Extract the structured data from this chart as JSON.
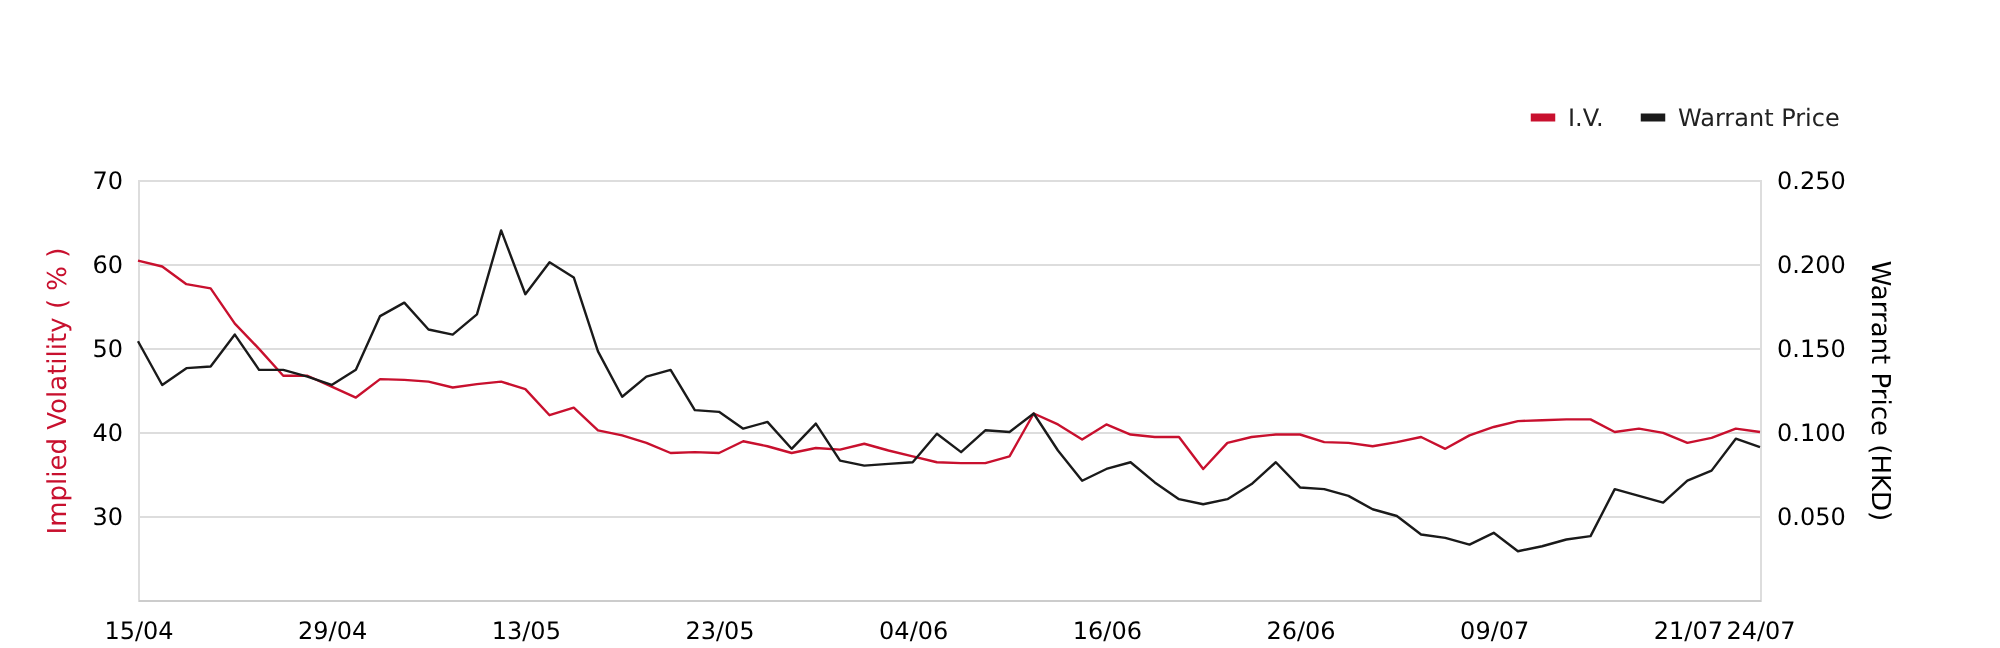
{
  "chart_data": {
    "type": "line",
    "categories": [
      "15/04",
      null,
      null,
      null,
      null,
      null,
      null,
      null,
      "29/04",
      null,
      null,
      null,
      null,
      null,
      null,
      null,
      "13/05",
      null,
      null,
      null,
      null,
      null,
      null,
      null,
      "23/05",
      null,
      null,
      null,
      null,
      null,
      null,
      null,
      "04/06",
      null,
      null,
      null,
      null,
      null,
      null,
      null,
      "16/06",
      null,
      null,
      null,
      null,
      null,
      null,
      null,
      "26/06",
      null,
      null,
      null,
      null,
      null,
      null,
      null,
      "09/07",
      null,
      null,
      null,
      null,
      null,
      null,
      null,
      "21/07",
      null,
      null,
      "24/07"
    ],
    "series": [
      {
        "name": "I.V.",
        "color": "#c8102e",
        "values": [
          60.4,
          59.7,
          57.6,
          57.1,
          52.9,
          49.9,
          46.7,
          46.7,
          45.4,
          44.1,
          46.3,
          46.2,
          46.0,
          45.3,
          45.7,
          46.0,
          45.1,
          42.0,
          42.9,
          40.2,
          39.6,
          38.7,
          37.5,
          37.6,
          37.5,
          38.9,
          38.3,
          37.5,
          38.1,
          37.9,
          38.6,
          37.8,
          37.1,
          36.4,
          36.3,
          36.3,
          37.1,
          42.2,
          40.9,
          39.1,
          40.9,
          39.7,
          39.4,
          39.4,
          35.6,
          38.7,
          39.4,
          39.7,
          39.7,
          38.8,
          38.7,
          38.3,
          38.8,
          39.4,
          38.0,
          39.6,
          40.6,
          41.3,
          41.4,
          41.5,
          41.5,
          40.0,
          40.4,
          39.9,
          38.7,
          39.3,
          40.4,
          40.0
        ]
      },
      {
        "name": "Warrant Price",
        "color": "#1a1a1a",
        "axis": "y2",
        "values": [
          0.154,
          0.128,
          0.138,
          0.139,
          0.158,
          0.137,
          0.137,
          0.133,
          0.128,
          0.137,
          0.169,
          0.177,
          0.161,
          0.158,
          0.17,
          0.22,
          0.182,
          0.201,
          0.192,
          0.148,
          0.121,
          0.133,
          0.137,
          0.113,
          0.112,
          0.102,
          0.106,
          0.09,
          0.105,
          0.083,
          0.08,
          0.081,
          0.082,
          0.099,
          0.088,
          0.101,
          0.1,
          0.111,
          0.089,
          0.071,
          0.078,
          0.082,
          0.07,
          0.06,
          0.057,
          0.06,
          0.069,
          0.082,
          0.067,
          0.066,
          0.062,
          0.054,
          0.05,
          0.039,
          0.037,
          0.033,
          0.04,
          0.029,
          0.032,
          0.036,
          0.038,
          0.066,
          0.062,
          0.058,
          0.071,
          0.077,
          0.096,
          0.091
        ]
      }
    ],
    "ylabel": "Implied Volatility ( % )",
    "y2label": "Warrant Price (HKD)",
    "ylim": [
      20,
      70
    ],
    "yticks": [
      {
        "value": 20,
        "label": null
      },
      30,
      40,
      50,
      60,
      70
    ],
    "y2lim": [
      0,
      0.25
    ],
    "y2ticks": [
      {
        "value": 0,
        "label": null
      },
      {
        "value": 0.05,
        "label": "0.050"
      },
      {
        "value": 0.1,
        "label": "0.100"
      },
      {
        "value": 0.15,
        "label": "0.150"
      },
      {
        "value": 0.2,
        "label": "0.200"
      },
      {
        "value": 0.25,
        "label": "0.250"
      }
    ],
    "grid": "y",
    "legend": "top right",
    "marker": "none",
    "line_style": "solid"
  }
}
